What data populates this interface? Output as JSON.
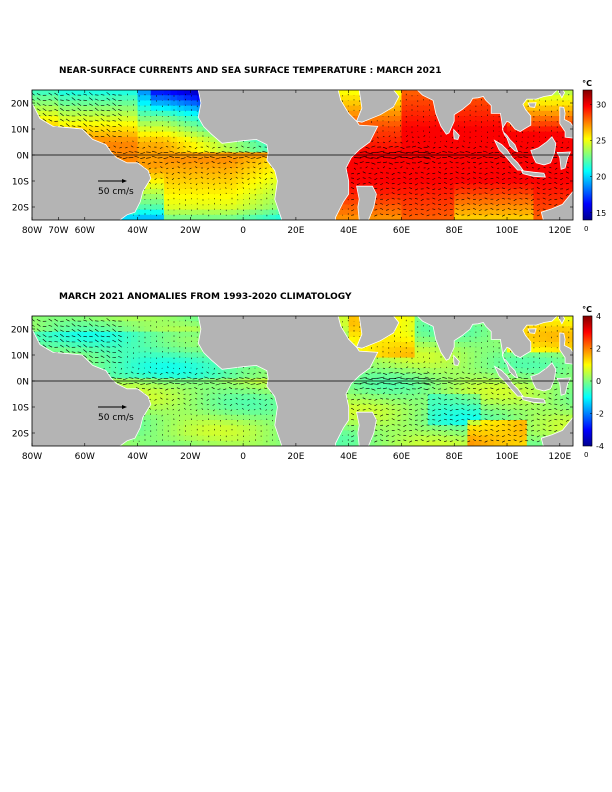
{
  "chart_data": [
    {
      "type": "heatmap",
      "title": "NEAR-SURFACE CURRENTS AND SEA SURFACE TEMPERATURE : MARCH 2021",
      "x_ticks": [
        "80W",
        "70W",
        "60W",
        "40W",
        "20W",
        "0",
        "20E",
        "40E",
        "60E",
        "80E",
        "100E",
        "120E"
      ],
      "x_tick_values": [
        -80,
        -70,
        -60,
        -40,
        -20,
        0,
        20,
        40,
        60,
        80,
        100,
        120
      ],
      "y_ticks": [
        "20N",
        "10N",
        "0N",
        "10S",
        "20S"
      ],
      "y_tick_values": [
        20,
        10,
        0,
        -10,
        -20
      ],
      "xlim": [
        -80,
        125
      ],
      "ylim": [
        -25,
        25
      ],
      "colorbar": {
        "unit": "°C",
        "ticks": [
          "30",
          "25",
          "20",
          "15"
        ],
        "tick_values": [
          30,
          25,
          20,
          15
        ],
        "min_label": "0",
        "range": [
          14,
          32
        ],
        "colormap": [
          "#00008f",
          "#0000ff",
          "#0080ff",
          "#00ffff",
          "#80ff80",
          "#ffff00",
          "#ff8000",
          "#ff0000",
          "#800000"
        ]
      },
      "reference_vector_label": "50 cm/s",
      "field": "sst"
    },
    {
      "type": "heatmap",
      "title": "MARCH 2021 ANOMALIES FROM 1993-2020 CLIMATOLOGY",
      "x_ticks": [
        "80W",
        "60W",
        "40W",
        "20W",
        "0",
        "20E",
        "40E",
        "60E",
        "80E",
        "100E",
        "120E"
      ],
      "x_tick_values": [
        -80,
        -60,
        -40,
        -20,
        0,
        20,
        40,
        60,
        80,
        100,
        120
      ],
      "y_ticks": [
        "20N",
        "10N",
        "0N",
        "10S",
        "20S"
      ],
      "y_tick_values": [
        20,
        10,
        0,
        -10,
        -20
      ],
      "xlim": [
        -80,
        125
      ],
      "ylim": [
        -25,
        25
      ],
      "colorbar": {
        "unit": "°C",
        "ticks": [
          "4",
          "2",
          "0",
          "-2",
          "-4"
        ],
        "tick_values": [
          4,
          2,
          0,
          -2,
          -4
        ],
        "min_label": "0",
        "range": [
          -4,
          4
        ],
        "colormap": [
          "#00008f",
          "#0000ff",
          "#0080ff",
          "#00ffff",
          "#80ff80",
          "#ffff00",
          "#ff8000",
          "#ff0000",
          "#800000"
        ]
      },
      "reference_vector_label": "50 cm/s",
      "field": "anomaly"
    }
  ],
  "colors": {
    "land": "#b4b4b4",
    "vector": "#000000",
    "coast": "#ffffff"
  }
}
